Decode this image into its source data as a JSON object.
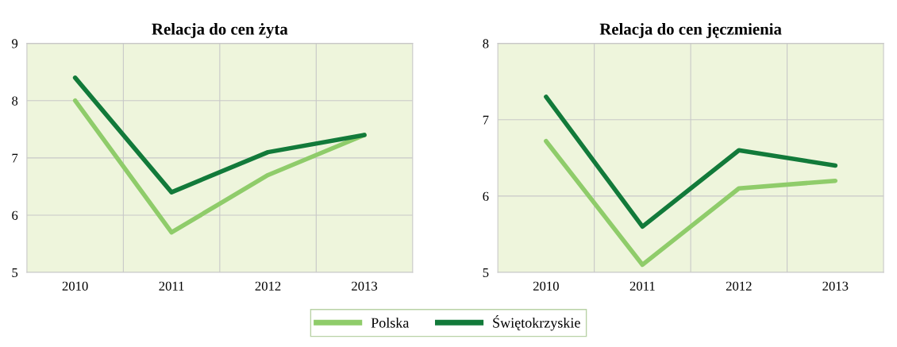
{
  "chart_data": [
    {
      "type": "line",
      "title": "Relacja do cen żyta",
      "categories": [
        "2010",
        "2011",
        "2012",
        "2013"
      ],
      "ylim": [
        5,
        9
      ],
      "yticks": [
        5,
        6,
        7,
        8,
        9
      ],
      "grid": true,
      "legend": "bottom",
      "line_style": "solid",
      "marker": "none",
      "series": [
        {
          "name": "Polska",
          "color": "#8fcc6a",
          "values": [
            8.0,
            5.7,
            6.7,
            7.4
          ]
        },
        {
          "name": "Świętokrzyskie",
          "color": "#127a3a",
          "values": [
            8.4,
            6.4,
            7.1,
            7.4
          ]
        }
      ]
    },
    {
      "type": "line",
      "title": "Relacja do cen jęczmienia",
      "categories": [
        "2010",
        "2011",
        "2012",
        "2013"
      ],
      "ylim": [
        5,
        8
      ],
      "yticks": [
        5,
        6,
        7,
        8
      ],
      "grid": true,
      "legend": "bottom",
      "line_style": "solid",
      "marker": "none",
      "series": [
        {
          "name": "Polska",
          "color": "#8fcc6a",
          "values": [
            6.72,
            5.1,
            6.1,
            6.2
          ]
        },
        {
          "name": "Świętokrzyskie",
          "color": "#127a3a",
          "values": [
            7.3,
            5.6,
            6.6,
            6.4
          ]
        }
      ]
    }
  ]
}
